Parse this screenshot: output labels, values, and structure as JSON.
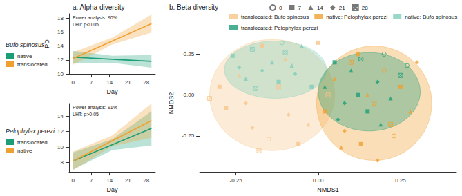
{
  "chart_data": [
    {
      "type": "line",
      "title": "a. Alpha diversity",
      "subtitle": "Bufo spinosus",
      "xlabel": "Day",
      "ylabel": "PD",
      "annotations": [
        "Power analysis: 90%",
        "LHT: p<0.05"
      ],
      "x": [
        0,
        15,
        30
      ],
      "xlim": [
        -1.5,
        31.5
      ],
      "xticks": [
        0,
        7,
        14,
        21,
        28
      ],
      "ylim": [
        10,
        18.6
      ],
      "yticks": [
        10,
        12,
        14,
        16,
        18
      ],
      "grid": false,
      "series": [
        {
          "name": "native",
          "color": "#1b9e77",
          "values": [
            12.4,
            12.1,
            11.8
          ],
          "lower": [
            11.5,
            11.6,
            10.9
          ],
          "upper": [
            13.3,
            12.6,
            12.7
          ]
        },
        {
          "name": "translocated",
          "color": "#f0a030",
          "values": [
            12.2,
            14.7,
            17.2
          ],
          "lower": [
            11.3,
            14.2,
            15.9
          ],
          "upper": [
            13.1,
            15.2,
            18.5
          ]
        }
      ]
    },
    {
      "type": "line",
      "subtitle": "Pelophylax perezi",
      "xlabel": "Day",
      "annotations": [
        "Power analysis: 91%",
        "LHT: p>0.05"
      ],
      "x": [
        0,
        15,
        30
      ],
      "xlim": [
        -1.5,
        31.5
      ],
      "xticks": [
        0,
        7,
        14,
        21,
        28
      ],
      "ylim": [
        6.8,
        15.6
      ],
      "yticks": [
        8,
        10,
        12,
        14
      ],
      "grid": false,
      "series": [
        {
          "name": "translocated",
          "color": "#1b9e77",
          "values": [
            8.2,
            10.3,
            12.4
          ],
          "lower": [
            7.1,
            9.6,
            10.2
          ],
          "upper": [
            9.3,
            11.0,
            14.6
          ]
        },
        {
          "name": "native",
          "color": "#f0a030",
          "values": [
            8.2,
            10.8,
            13.4
          ],
          "lower": [
            7.0,
            10.1,
            11.2
          ],
          "upper": [
            9.4,
            11.5,
            15.6
          ]
        }
      ]
    },
    {
      "type": "scatter",
      "title": "b. Beta diversity",
      "xlabel": "NMDS1",
      "ylabel": "NMDS2",
      "xlim": [
        -0.36,
        0.42
      ],
      "xticks": [
        -0.25,
        {
          "value": 0,
          "label": "0.00"
        },
        0.25
      ],
      "ylim": [
        -0.47,
        0.37
      ],
      "yticks": [
        -0.25,
        {
          "value": 0,
          "label": "0.00"
        },
        0.25
      ],
      "grid": false,
      "days": [
        0,
        7,
        14,
        21,
        28
      ],
      "day_markers": [
        "circle-open",
        "square",
        "triangle",
        "diamond",
        "square-x"
      ],
      "series": [
        {
          "name": "translocated: Bufo spinosus",
          "color": "#f7c58a",
          "x": [
            -0.33,
            -0.28,
            -0.24,
            -0.2,
            -0.17,
            -0.15,
            -0.12,
            -0.09,
            -0.06,
            -0.03,
            0.0,
            0.03,
            -0.22,
            -0.3,
            -0.1,
            -0.18
          ],
          "values": [
            -0.02,
            -0.08,
            0.12,
            -0.2,
            0.3,
            -0.27,
            0.05,
            -0.12,
            -0.3,
            -0.18,
            0.32,
            0.0,
            -0.05,
            0.05,
            0.22,
            -0.34
          ],
          "day": [
            28,
            7,
            14,
            21,
            7,
            0,
            28,
            21,
            7,
            14,
            7,
            28,
            21,
            7,
            14,
            28
          ],
          "ellipse": {
            "cx": -0.14,
            "cy": 0.0,
            "rx": 0.19,
            "ry": 0.34
          }
        },
        {
          "name": "native: Pelophylax perezi",
          "color": "#f0a030",
          "x": [
            0.02,
            0.05,
            0.08,
            0.1,
            0.13,
            0.15,
            0.18,
            0.2,
            0.22,
            0.25,
            0.28,
            0.3,
            0.12,
            0.17,
            0.07,
            0.23
          ],
          "values": [
            -0.1,
            0.1,
            -0.22,
            0.2,
            -0.3,
            0.0,
            -0.4,
            0.15,
            -0.18,
            0.05,
            -0.1,
            0.2,
            0.25,
            -0.05,
            -0.32,
            -0.25
          ],
          "day": [
            7,
            14,
            21,
            28,
            7,
            14,
            21,
            0,
            28,
            7,
            14,
            21,
            7,
            28,
            14,
            0
          ],
          "ellipse": {
            "cx": 0.17,
            "cy": -0.05,
            "rx": 0.175,
            "ry": 0.35
          }
        },
        {
          "name": "native: Bufo spinosus",
          "color": "#7fcdbb",
          "x": [
            -0.26,
            -0.22,
            -0.2,
            -0.17,
            -0.14,
            -0.12,
            -0.1,
            -0.07,
            -0.05,
            -0.02,
            -0.19,
            -0.08,
            -0.24,
            -0.11
          ],
          "values": [
            0.24,
            0.1,
            0.28,
            0.15,
            0.2,
            0.08,
            0.26,
            0.13,
            0.3,
            0.05,
            0.04,
            0.18,
            0.17,
            0.32
          ],
          "day": [
            7,
            14,
            28,
            21,
            14,
            7,
            28,
            21,
            14,
            7,
            28,
            14,
            21,
            0
          ],
          "ellipse": {
            "cx": -0.13,
            "cy": 0.155,
            "rx": 0.155,
            "ry": 0.175
          }
        },
        {
          "name": "translocated: Pelophylax perezi",
          "color": "#1b9e77",
          "x": [
            0.02,
            0.05,
            0.08,
            0.1,
            0.13,
            0.15,
            0.18,
            0.2,
            0.22,
            0.25,
            0.27,
            0.12,
            0.06,
            0.19
          ],
          "values": [
            0.05,
            0.2,
            -0.05,
            0.15,
            0.22,
            -0.1,
            0.08,
            0.25,
            -0.02,
            0.12,
            0.18,
            0.0,
            -0.15,
            -0.18
          ],
          "day": [
            14,
            7,
            21,
            14,
            28,
            7,
            21,
            0,
            14,
            28,
            0,
            7,
            21,
            14
          ],
          "ellipse": {
            "cx": 0.155,
            "cy": 0.02,
            "rx": 0.155,
            "ry": 0.24
          }
        }
      ]
    }
  ]
}
